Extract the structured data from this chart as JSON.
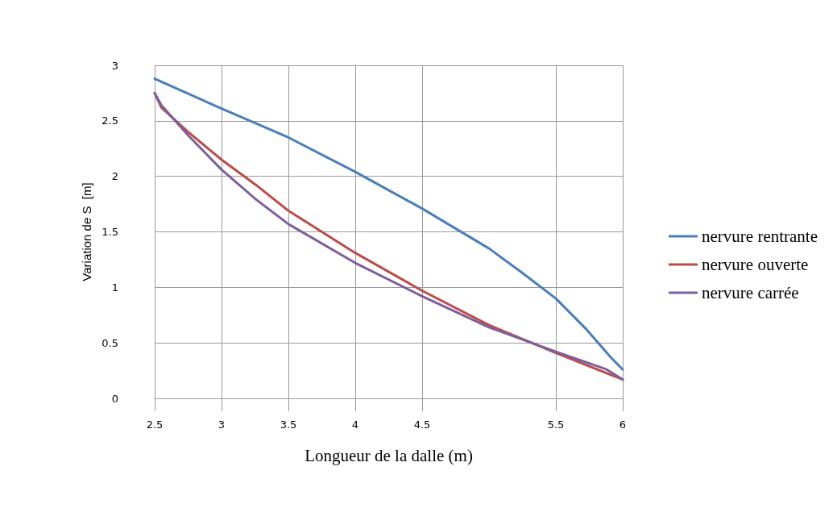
{
  "chart_data": {
    "type": "line",
    "xlabel": "Longueur de la dalle (m)",
    "ylabel": "Variation de S  [m]",
    "xlim": [
      2.5,
      6
    ],
    "xticks": [
      2.5,
      3,
      3.5,
      4,
      4.5,
      5.5,
      6
    ],
    "ylim": [
      0,
      3
    ],
    "yticks": [
      0,
      0.5,
      1,
      1.5,
      2,
      2.5,
      3
    ],
    "grid": true,
    "legend": "right",
    "marker": "none",
    "line_style": "solid",
    "series": [
      {
        "name": "nervure rentrante",
        "color": "#4a7ebb",
        "x": [
          2.5,
          3,
          3.5,
          4,
          4.5,
          5,
          5.25,
          5.5,
          5.73,
          5.91,
          6
        ],
        "values": [
          2.88,
          2.61,
          2.35,
          2.04,
          1.71,
          1.35,
          1.13,
          0.9,
          0.62,
          0.37,
          0.26
        ]
      },
      {
        "name": "nervure ouverte",
        "color": "#be4b48",
        "x": [
          2.5,
          2.55,
          2.75,
          3,
          3.26,
          3.5,
          4,
          4.5,
          5,
          5.5,
          6
        ],
        "values": [
          2.75,
          2.62,
          2.4,
          2.15,
          1.92,
          1.69,
          1.31,
          0.97,
          0.66,
          0.41,
          0.17
        ]
      },
      {
        "name": "nervure carrée",
        "color": "#7d5fa0",
        "x": [
          2.5,
          2.55,
          2.75,
          3,
          3.26,
          3.5,
          4,
          4.5,
          5,
          5.5,
          5.88,
          6
        ],
        "values": [
          2.75,
          2.64,
          2.37,
          2.06,
          1.79,
          1.57,
          1.22,
          0.92,
          0.64,
          0.42,
          0.26,
          0.17
        ]
      }
    ]
  }
}
